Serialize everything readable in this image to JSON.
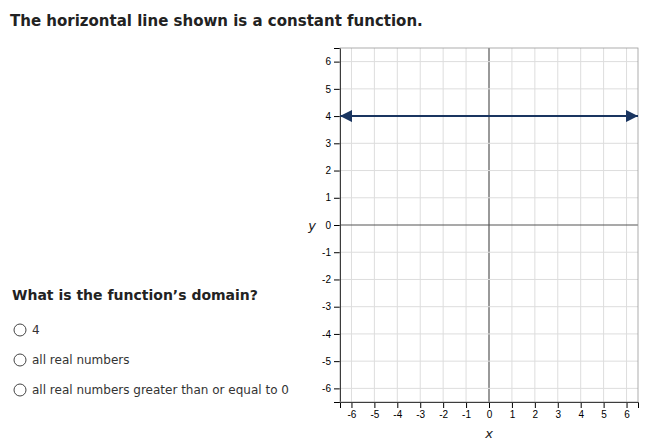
{
  "chart_data": {
    "type": "line",
    "title": "The horizontal line shown is a constant function.",
    "x_label": "x",
    "y_label": "y",
    "annotations": {
      "question": "What is the function’s domain?",
      "options": [
        "4",
        "all real numbers",
        "all real numbers greater than or equal to 0"
      ]
    },
    "x": [
      -6.5,
      6.5
    ],
    "values": [
      4,
      4
    ],
    "color": "#1a3560",
    "xlim": [
      -6.5,
      6.5
    ],
    "ylim": [
      -6.5,
      6.5
    ],
    "xticks": [
      -6,
      -5,
      -4,
      -3,
      -2,
      -1,
      0,
      1,
      2,
      3,
      4,
      5,
      6
    ],
    "yticks": [
      -6,
      -5,
      -4,
      -3,
      -2,
      -1,
      0,
      1,
      2,
      3,
      4,
      5,
      6
    ],
    "grid": true
  }
}
